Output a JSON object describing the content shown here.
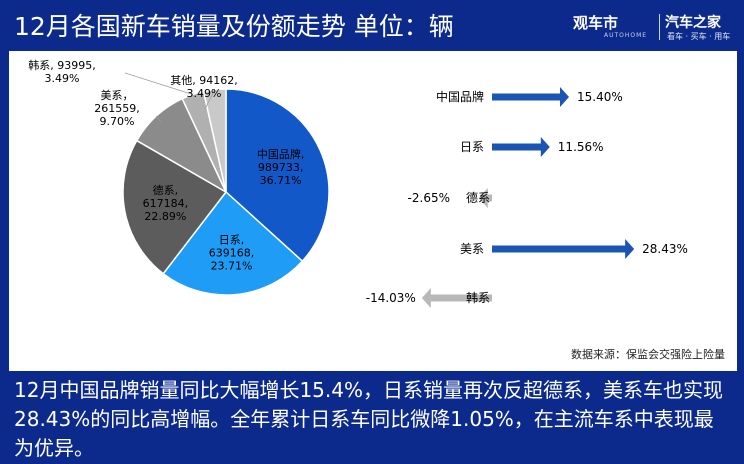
{
  "header": {
    "title": "12月各国新车销量及份额走势  单位：辆",
    "logo_primary": "汽车之家",
    "logo_primary_tagline": "看车 · 买车 · 用车",
    "logo_secondary": "观车市",
    "logo_secondary_sub": "AUTOHOME"
  },
  "chart_data": [
    {
      "type": "pie",
      "categories": [
        "中国品牌",
        "日系",
        "德系",
        "美系",
        "韩系",
        "其他"
      ],
      "values": [
        989733,
        639168,
        617184,
        261559,
        93995,
        94162
      ],
      "shares": [
        "36.71%",
        "23.71%",
        "22.89%",
        "9.70%",
        "3.49%",
        "3.49%"
      ],
      "colors": [
        "#1258c8",
        "#1e9cf6",
        "#5c5c5c",
        "#8b8b8b",
        "#b0b0b0",
        "#c9c9c9"
      ]
    },
    {
      "type": "bar",
      "orientation": "horizontal",
      "categories": [
        "中国品牌",
        "日系",
        "德系",
        "美系",
        "韩系"
      ],
      "values": [
        15.4,
        11.56,
        -2.65,
        28.43,
        -14.03
      ],
      "value_labels": [
        "15.40%",
        "11.56%",
        "-2.65%",
        "28.43%",
        "-14.03%"
      ],
      "positive_color": "#1a55b3",
      "negative_color": "#b8b8b8"
    }
  ],
  "source": "数据来源：保监会交强险上险量",
  "summary": "12月中国品牌销量同比大幅增长15.4%，日系销量再次反超德系，美系车也实现28.43%的同比高增幅。全年累计日系车同比微降1.05%，在主流车系中表现最为优异。"
}
